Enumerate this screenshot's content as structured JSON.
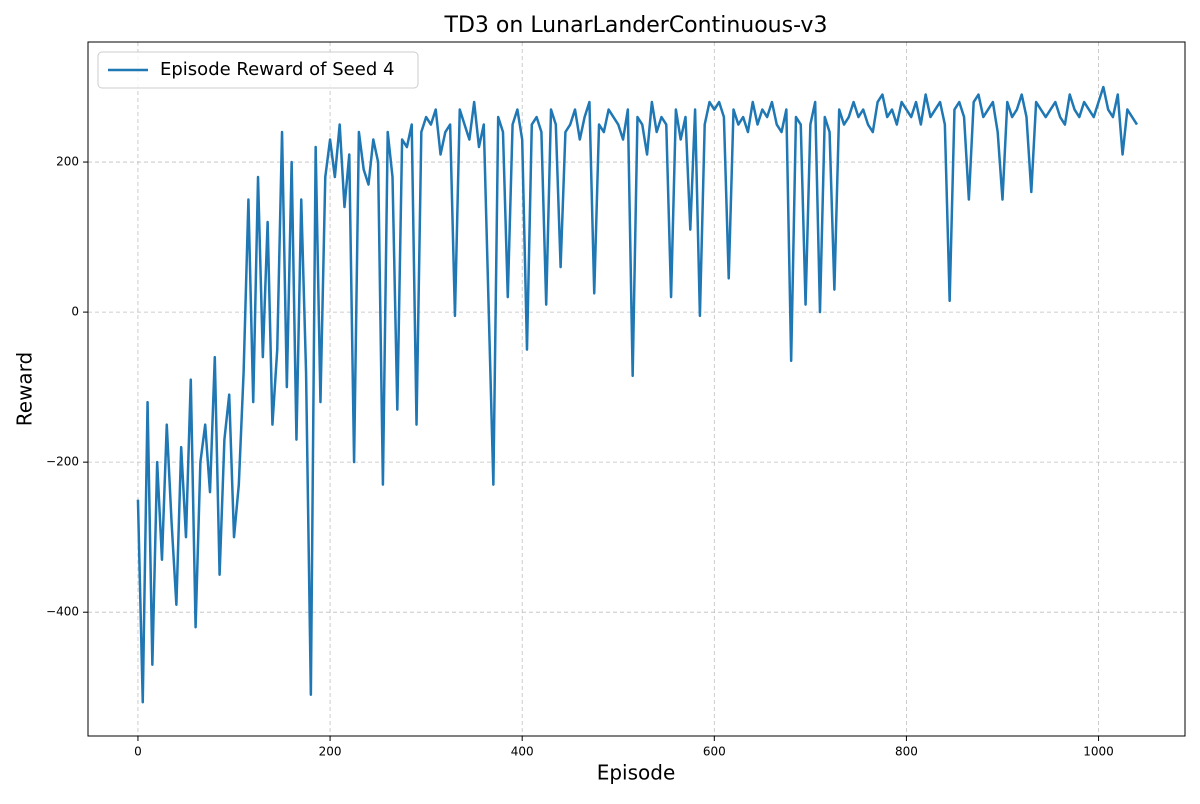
{
  "chart_data": {
    "type": "line",
    "title": "TD3 on LunarLanderContinuous-v3",
    "x_label": "Episode",
    "y_label": "Reward",
    "x": [
      0,
      5,
      10,
      15,
      20,
      25,
      30,
      35,
      40,
      45,
      50,
      55,
      60,
      65,
      70,
      75,
      80,
      85,
      90,
      95,
      100,
      105,
      110,
      115,
      120,
      125,
      130,
      135,
      140,
      145,
      150,
      155,
      160,
      165,
      170,
      175,
      180,
      185,
      190,
      195,
      200,
      205,
      210,
      215,
      220,
      225,
      230,
      235,
      240,
      245,
      250,
      255,
      260,
      265,
      270,
      275,
      280,
      285,
      290,
      295,
      300,
      305,
      310,
      315,
      320,
      325,
      330,
      335,
      340,
      345,
      350,
      355,
      360,
      365,
      370,
      375,
      380,
      385,
      390,
      395,
      400,
      405,
      410,
      415,
      420,
      425,
      430,
      435,
      440,
      445,
      450,
      455,
      460,
      465,
      470,
      475,
      480,
      485,
      490,
      495,
      500,
      505,
      510,
      515,
      520,
      525,
      530,
      535,
      540,
      545,
      550,
      555,
      560,
      565,
      570,
      575,
      580,
      585,
      590,
      595,
      600,
      605,
      610,
      615,
      620,
      625,
      630,
      635,
      640,
      645,
      650,
      655,
      660,
      665,
      670,
      675,
      680,
      685,
      690,
      695,
      700,
      705,
      710,
      715,
      720,
      725,
      730,
      735,
      740,
      745,
      750,
      755,
      760,
      765,
      770,
      775,
      780,
      785,
      790,
      795,
      800,
      805,
      810,
      815,
      820,
      825,
      830,
      835,
      840,
      845,
      850,
      855,
      860,
      865,
      870,
      875,
      880,
      885,
      890,
      895,
      900,
      905,
      910,
      915,
      920,
      925,
      930,
      935,
      940,
      945,
      950,
      955,
      960,
      965,
      970,
      975,
      980,
      985,
      990,
      995,
      1000,
      1005,
      1010,
      1015,
      1020,
      1025,
      1030,
      1035,
      1040
    ],
    "series": [
      {
        "name": "Episode Reward of Seed 4",
        "color": "#1f77b4",
        "values": [
          -250,
          -520,
          -120,
          -470,
          -200,
          -330,
          -150,
          -280,
          -390,
          -180,
          -300,
          -90,
          -420,
          -200,
          -150,
          -240,
          -60,
          -350,
          -170,
          -110,
          -300,
          -230,
          -80,
          150,
          -120,
          180,
          -60,
          120,
          -150,
          -50,
          240,
          -100,
          200,
          -170,
          150,
          -80,
          -510,
          220,
          -120,
          180,
          230,
          180,
          250,
          140,
          210,
          -200,
          240,
          190,
          170,
          230,
          200,
          -230,
          240,
          180,
          -130,
          230,
          220,
          250,
          -150,
          240,
          260,
          250,
          270,
          210,
          240,
          250,
          -5,
          270,
          250,
          230,
          280,
          220,
          250,
          10,
          -230,
          260,
          240,
          20,
          250,
          270,
          230,
          -50,
          250,
          260,
          240,
          10,
          270,
          250,
          60,
          240,
          250,
          270,
          230,
          260,
          280,
          25,
          250,
          240,
          270,
          260,
          250,
          230,
          270,
          -85,
          260,
          250,
          210,
          280,
          240,
          260,
          250,
          20,
          270,
          230,
          260,
          110,
          270,
          -5,
          250,
          280,
          270,
          280,
          260,
          45,
          270,
          250,
          260,
          240,
          280,
          250,
          270,
          260,
          280,
          250,
          240,
          270,
          -65,
          260,
          250,
          10,
          250,
          280,
          0,
          260,
          240,
          30,
          270,
          250,
          260,
          280,
          260,
          270,
          250,
          240,
          280,
          290,
          260,
          270,
          250,
          280,
          270,
          260,
          280,
          250,
          290,
          260,
          270,
          280,
          250,
          15,
          270,
          280,
          260,
          150,
          280,
          290,
          260,
          270,
          280,
          240,
          150,
          280,
          260,
          270,
          290,
          260,
          160,
          280,
          270,
          260,
          270,
          280,
          260,
          250,
          290,
          270,
          260,
          280,
          270,
          260,
          280,
          300,
          270,
          260,
          290,
          210,
          270,
          260,
          250
        ]
      }
    ],
    "xlim": [
      -52,
      1090
    ],
    "ylim": [
      -565,
      360
    ],
    "xticks": [
      0,
      200,
      400,
      600,
      800,
      1000
    ],
    "yticks": [
      {
        "value": -400,
        "label": "−400"
      },
      {
        "value": -200,
        "label": "−200"
      },
      0,
      200
    ],
    "grid": true,
    "legend": "upper left"
  }
}
